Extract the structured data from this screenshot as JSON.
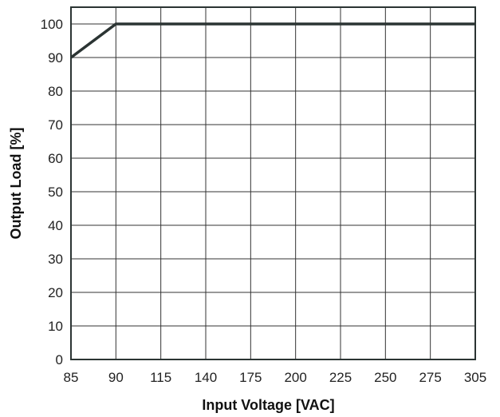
{
  "chart_data": {
    "type": "line",
    "title": "",
    "xlabel": "Input Voltage [VAC]",
    "ylabel": "Output Load [%]",
    "x_ticks": [
      "85",
      "90",
      "115",
      "140",
      "175",
      "200",
      "225",
      "250",
      "275",
      "305"
    ],
    "y_ticks": [
      "0",
      "10",
      "20",
      "30",
      "40",
      "50",
      "60",
      "70",
      "80",
      "90",
      "100"
    ],
    "ylim": [
      0,
      105
    ],
    "grid": true,
    "series": [
      {
        "color": "#2b3433",
        "points": [
          {
            "x": "85",
            "y": 90
          },
          {
            "x": "90",
            "y": 100
          },
          {
            "x": "305",
            "y": 100
          }
        ]
      }
    ]
  }
}
